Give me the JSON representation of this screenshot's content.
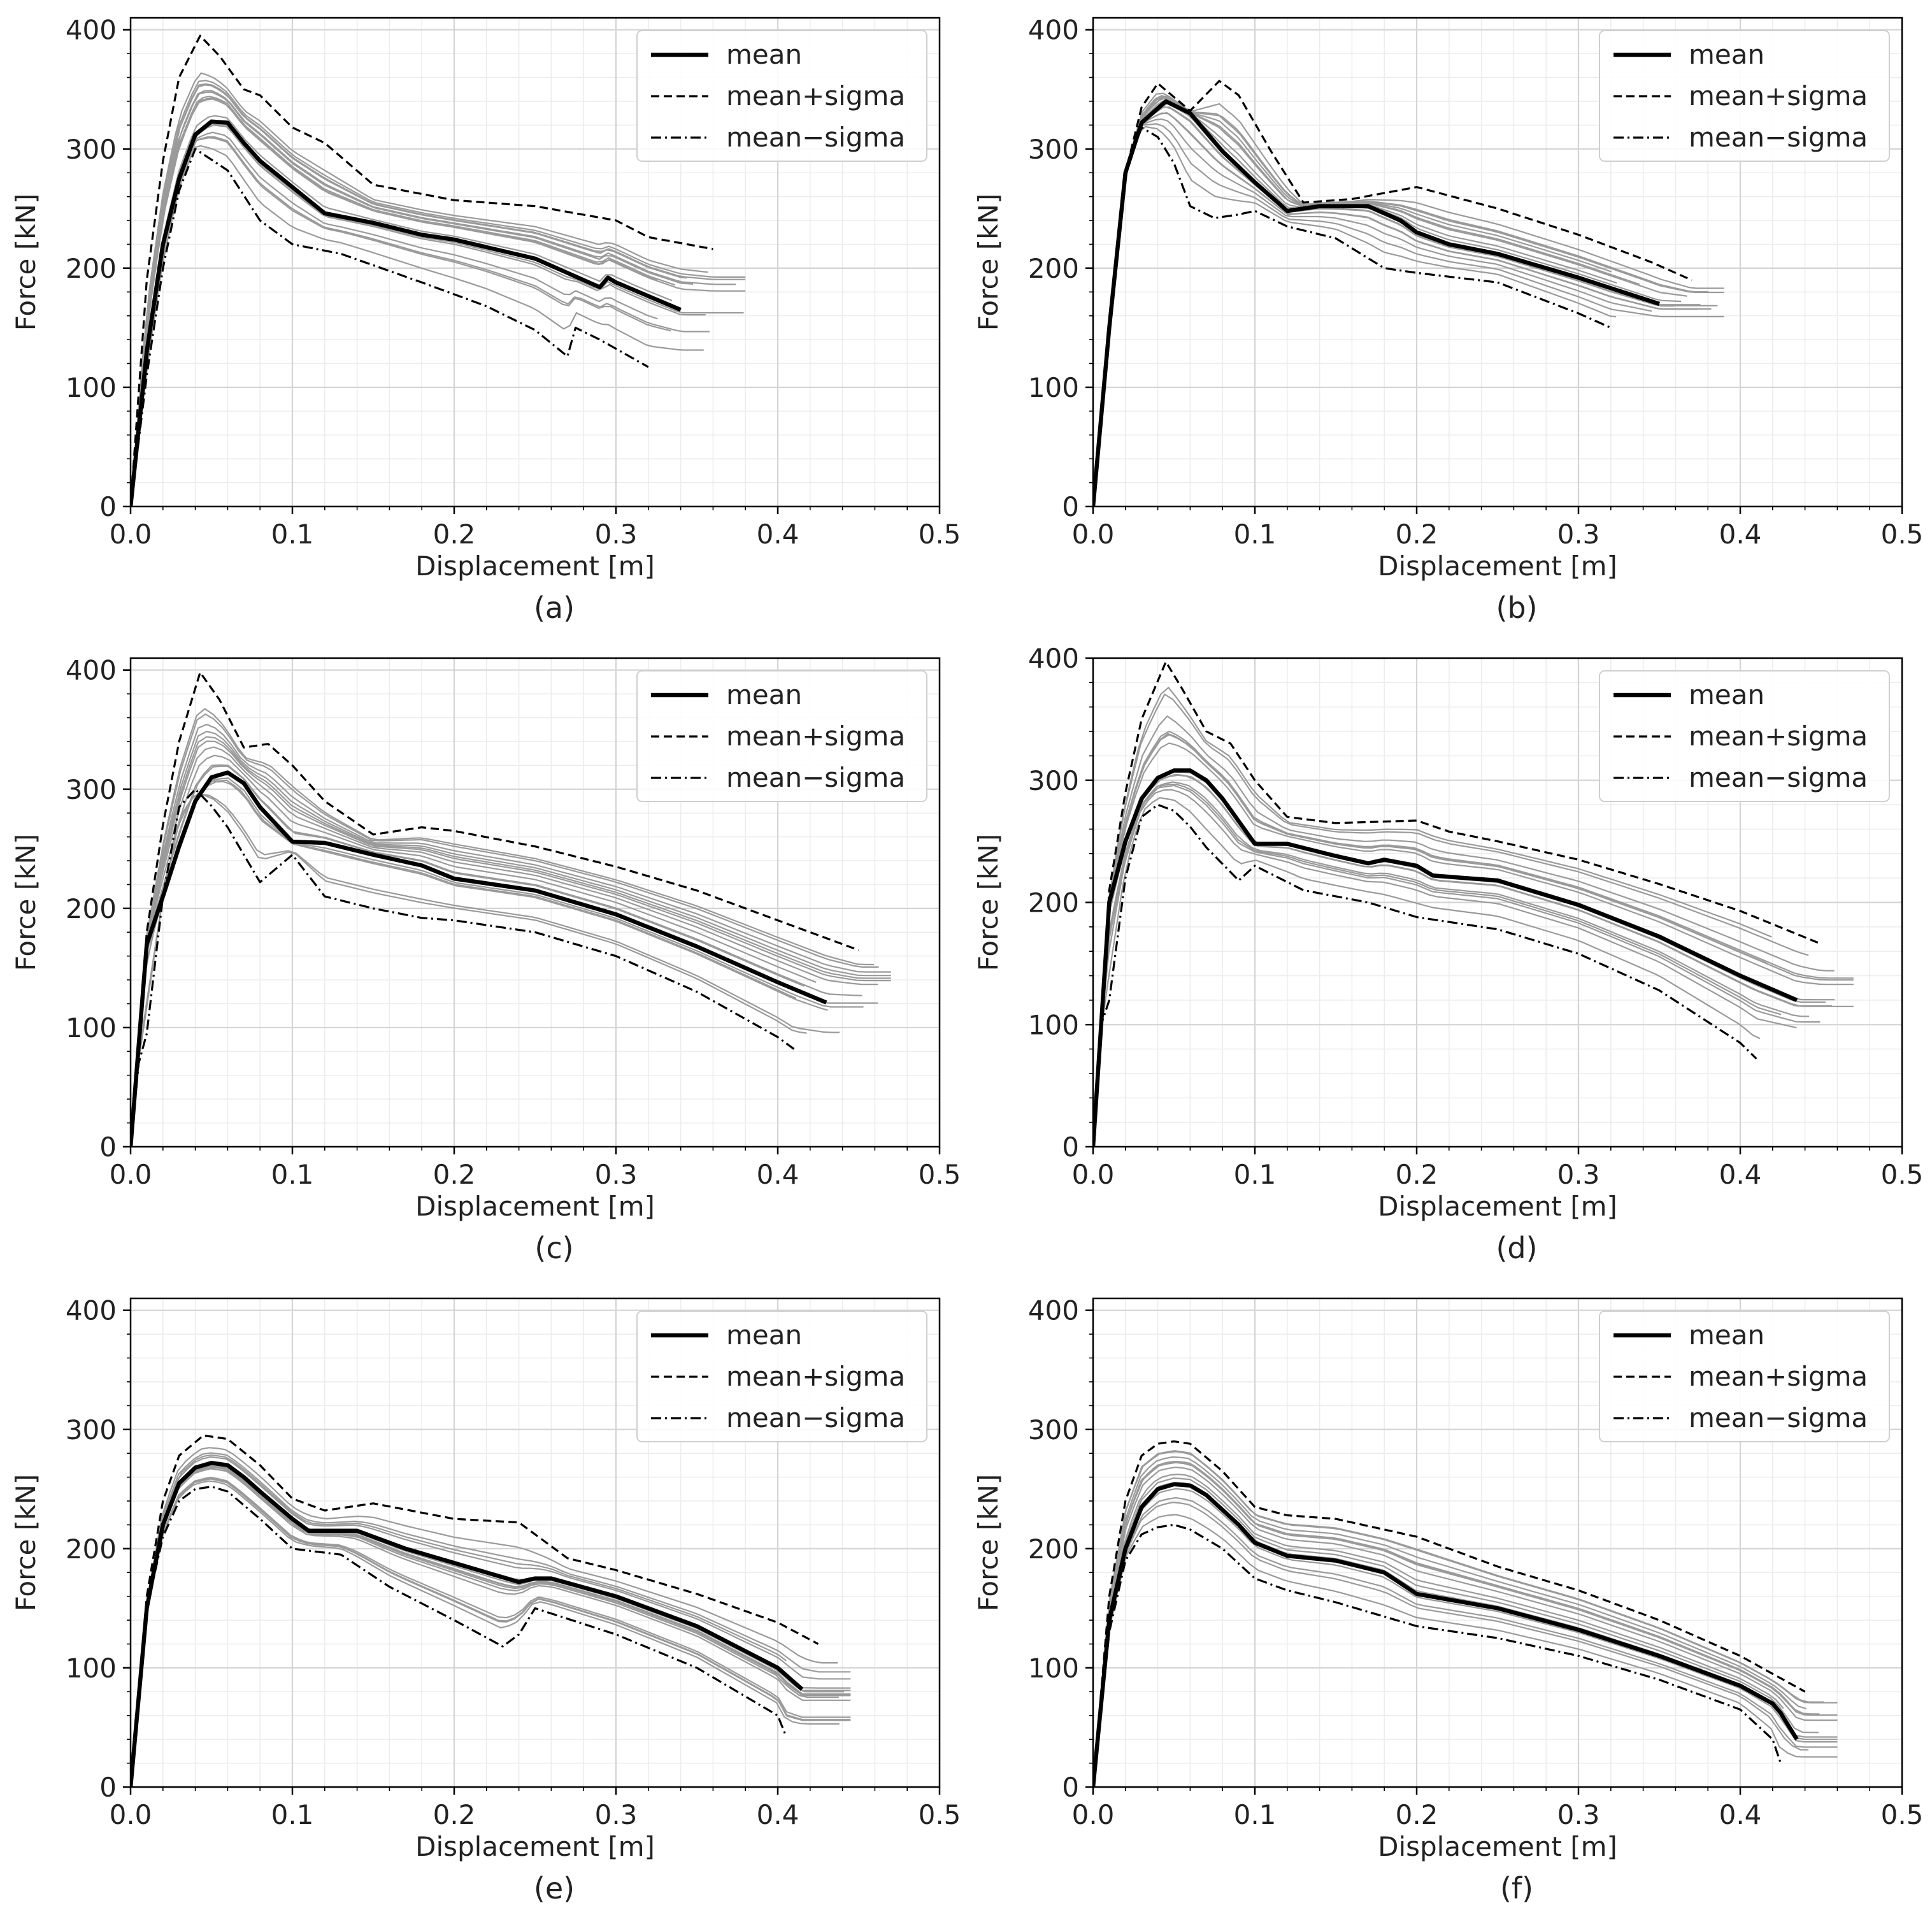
{
  "figure": {
    "chart_data": [
      {
        "type": "line",
        "panel_label": "(a)",
        "xlabel": "Displacement [m]",
        "ylabel": "Force [kN]",
        "xlim": [
          0,
          0.5
        ],
        "ylim": [
          0,
          410
        ],
        "xticks": [
          "0.0",
          "0.1",
          "0.2",
          "0.3",
          "0.4",
          "0.5"
        ],
        "yticks": [
          "0",
          "100",
          "200",
          "300",
          "400"
        ],
        "legend": {
          "position": "top-right",
          "entries": [
            "mean",
            "mean+sigma",
            "mean−sigma"
          ]
        },
        "series": [
          {
            "name": "mean",
            "style": "solid-thick",
            "x": [
              0,
              0.01,
              0.02,
              0.03,
              0.04,
              0.05,
              0.06,
              0.07,
              0.08,
              0.1,
              0.12,
              0.15,
              0.18,
              0.2,
              0.25,
              0.29,
              0.295,
              0.3,
              0.34
            ],
            "y": [
              0,
              130,
              220,
              275,
              312,
              323,
              322,
              305,
              290,
              268,
              246,
              238,
              228,
              224,
              208,
              184,
              192,
              188,
              165
            ]
          },
          {
            "name": "mean+sigma",
            "style": "dashed",
            "x": [
              0,
              0.01,
              0.02,
              0.03,
              0.043,
              0.055,
              0.07,
              0.08,
              0.1,
              0.12,
              0.15,
              0.2,
              0.25,
              0.3,
              0.32,
              0.36
            ],
            "y": [
              0,
              190,
              290,
              360,
              395,
              378,
              350,
              345,
              318,
              305,
              270,
              257,
              252,
              240,
              226,
              216
            ]
          },
          {
            "name": "mean−sigma",
            "style": "dashdot",
            "x": [
              0,
              0.01,
              0.02,
              0.03,
              0.04,
              0.06,
              0.08,
              0.1,
              0.13,
              0.18,
              0.22,
              0.25,
              0.27,
              0.275,
              0.29,
              0.32
            ],
            "y": [
              0,
              110,
              200,
              265,
              300,
              282,
              240,
              220,
              212,
              188,
              168,
              148,
              126,
              150,
              140,
              117
            ]
          }
        ]
      },
      {
        "type": "line",
        "panel_label": "(b)",
        "xlabel": "Displacement [m]",
        "ylabel": "Force [kN]",
        "xlim": [
          0,
          0.5
        ],
        "ylim": [
          0,
          410
        ],
        "xticks": [
          "0.0",
          "0.1",
          "0.2",
          "0.3",
          "0.4",
          "0.5"
        ],
        "yticks": [
          "0",
          "100",
          "200",
          "300",
          "400"
        ],
        "legend": {
          "position": "top-right",
          "entries": [
            "mean",
            "mean+sigma",
            "mean−sigma"
          ]
        },
        "series": [
          {
            "name": "mean",
            "style": "solid-thick",
            "x": [
              0,
              0.01,
              0.02,
              0.03,
              0.045,
              0.06,
              0.08,
              0.1,
              0.12,
              0.14,
              0.17,
              0.19,
              0.2,
              0.22,
              0.25,
              0.3,
              0.35
            ],
            "y": [
              0,
              150,
              280,
              322,
              340,
              330,
              298,
              272,
              248,
              252,
              252,
              240,
              230,
              220,
              212,
              192,
              170
            ]
          },
          {
            "name": "mean+sigma",
            "style": "dashed",
            "x": [
              0,
              0.01,
              0.02,
              0.03,
              0.04,
              0.06,
              0.078,
              0.09,
              0.11,
              0.13,
              0.16,
              0.2,
              0.25,
              0.3,
              0.345,
              0.37
            ],
            "y": [
              0,
              150,
              280,
              335,
              355,
              332,
              357,
              345,
              298,
              255,
              258,
              268,
              250,
              228,
              205,
              190
            ]
          },
          {
            "name": "mean−sigma",
            "style": "dashdot",
            "x": [
              0,
              0.01,
              0.02,
              0.03,
              0.04,
              0.05,
              0.06,
              0.075,
              0.09,
              0.1,
              0.12,
              0.15,
              0.18,
              0.2,
              0.25,
              0.3,
              0.32
            ],
            "y": [
              0,
              150,
              280,
              318,
              310,
              288,
              252,
              242,
              245,
              248,
              235,
              225,
              200,
              196,
              188,
              162,
              150
            ]
          }
        ]
      },
      {
        "type": "line",
        "panel_label": "(c)",
        "xlabel": "Displacement [m]",
        "ylabel": "Force [kN]",
        "xlim": [
          0,
          0.5
        ],
        "ylim": [
          0,
          410
        ],
        "xticks": [
          "0.0",
          "0.1",
          "0.2",
          "0.3",
          "0.4",
          "0.5"
        ],
        "yticks": [
          "0",
          "100",
          "200",
          "300",
          "400"
        ],
        "legend": {
          "position": "top-right",
          "entries": [
            "mean",
            "mean+sigma",
            "mean−sigma"
          ]
        },
        "series": [
          {
            "name": "mean",
            "style": "solid-thick",
            "x": [
              0,
              0.01,
              0.02,
              0.03,
              0.04,
              0.05,
              0.06,
              0.07,
              0.08,
              0.1,
              0.12,
              0.15,
              0.18,
              0.2,
              0.25,
              0.3,
              0.35,
              0.4,
              0.43
            ],
            "y": [
              0,
              170,
              210,
              252,
              290,
              310,
              314,
              305,
              285,
              256,
              255,
              245,
              236,
              225,
              215,
              195,
              168,
              138,
              121
            ]
          },
          {
            "name": "mean+sigma",
            "style": "dashed",
            "x": [
              0,
              0.01,
              0.02,
              0.03,
              0.043,
              0.055,
              0.07,
              0.085,
              0.1,
              0.12,
              0.15,
              0.18,
              0.2,
              0.25,
              0.3,
              0.35,
              0.4,
              0.45
            ],
            "y": [
              0,
              180,
              270,
              340,
              398,
              375,
              335,
              338,
              320,
              290,
              262,
              268,
              265,
              252,
              235,
              215,
              190,
              165
            ]
          },
          {
            "name": "mean−sigma",
            "style": "dashdot",
            "x": [
              0,
              0.005,
              0.01,
              0.02,
              0.03,
              0.04,
              0.05,
              0.06,
              0.08,
              0.1,
              0.12,
              0.15,
              0.18,
              0.2,
              0.25,
              0.3,
              0.35,
              0.4,
              0.41
            ],
            "y": [
              0,
              70,
              95,
              210,
              285,
              300,
              286,
              268,
              222,
              245,
              210,
              200,
              192,
              190,
              180,
              160,
              130,
              92,
              82
            ]
          }
        ]
      },
      {
        "type": "line",
        "panel_label": "(d)",
        "xlabel": "Displacement [m]",
        "ylabel": "Force [kN]",
        "xlim": [
          0,
          0.5
        ],
        "ylim": [
          0,
          400
        ],
        "xticks": [
          "0.0",
          "0.1",
          "0.2",
          "0.3",
          "0.4",
          "0.5"
        ],
        "yticks": [
          "0",
          "100",
          "200",
          "300",
          "400"
        ],
        "legend": {
          "position": "top-right",
          "entries": [
            "mean",
            "mean+sigma",
            "mean−sigma"
          ]
        },
        "series": [
          {
            "name": "mean",
            "style": "solid-thick",
            "x": [
              0,
              0.01,
              0.02,
              0.03,
              0.04,
              0.05,
              0.06,
              0.07,
              0.08,
              0.1,
              0.12,
              0.15,
              0.17,
              0.18,
              0.2,
              0.21,
              0.25,
              0.3,
              0.35,
              0.4,
              0.435
            ],
            "y": [
              0,
              200,
              250,
              285,
              302,
              308,
              308,
              300,
              285,
              248,
              248,
              238,
              232,
              235,
              230,
              222,
              218,
              198,
              172,
              140,
              120
            ]
          },
          {
            "name": "mean+sigma",
            "style": "dashed",
            "x": [
              0,
              0.01,
              0.02,
              0.03,
              0.045,
              0.055,
              0.07,
              0.085,
              0.1,
              0.12,
              0.15,
              0.2,
              0.22,
              0.25,
              0.3,
              0.35,
              0.4,
              0.45
            ],
            "y": [
              0,
              210,
              290,
              350,
              397,
              375,
              340,
              330,
              300,
              270,
              265,
              267,
              258,
              250,
              235,
              215,
              193,
              166
            ]
          },
          {
            "name": "mean−sigma",
            "style": "dashdot",
            "x": [
              0,
              0.005,
              0.01,
              0.02,
              0.03,
              0.04,
              0.05,
              0.06,
              0.07,
              0.09,
              0.1,
              0.13,
              0.17,
              0.2,
              0.25,
              0.3,
              0.35,
              0.4,
              0.41
            ],
            "y": [
              0,
              100,
              120,
              220,
              270,
              280,
              275,
              262,
              245,
              218,
              230,
              210,
              200,
              188,
              178,
              158,
              128,
              85,
              72
            ]
          }
        ]
      },
      {
        "type": "line",
        "panel_label": "(e)",
        "xlabel": "Displacement [m]",
        "ylabel": "Force [kN]",
        "xlim": [
          0,
          0.5
        ],
        "ylim": [
          0,
          410
        ],
        "xticks": [
          "0.0",
          "0.1",
          "0.2",
          "0.3",
          "0.4",
          "0.5"
        ],
        "yticks": [
          "0",
          "100",
          "200",
          "300",
          "400"
        ],
        "legend": {
          "position": "top-right",
          "entries": [
            "mean",
            "mean+sigma",
            "mean−sigma"
          ]
        },
        "series": [
          {
            "name": "mean",
            "style": "solid-thick",
            "x": [
              0,
              0.01,
              0.02,
              0.03,
              0.04,
              0.05,
              0.06,
              0.07,
              0.08,
              0.1,
              0.11,
              0.14,
              0.17,
              0.2,
              0.24,
              0.25,
              0.26,
              0.3,
              0.35,
              0.4,
              0.415
            ],
            "y": [
              0,
              150,
              220,
              255,
              268,
              272,
              270,
              260,
              248,
              225,
              215,
              215,
              200,
              188,
              172,
              175,
              175,
              160,
              135,
              100,
              82
            ]
          },
          {
            "name": "mean+sigma",
            "style": "dashed",
            "x": [
              0,
              0.01,
              0.02,
              0.03,
              0.045,
              0.06,
              0.08,
              0.1,
              0.12,
              0.15,
              0.2,
              0.24,
              0.27,
              0.3,
              0.35,
              0.4,
              0.425
            ],
            "y": [
              0,
              160,
              240,
              278,
              295,
              292,
              270,
              242,
              232,
              238,
              225,
              222,
              192,
              182,
              162,
              138,
              120
            ]
          },
          {
            "name": "mean−sigma",
            "style": "dashdot",
            "x": [
              0,
              0.01,
              0.02,
              0.03,
              0.04,
              0.05,
              0.06,
              0.08,
              0.1,
              0.13,
              0.16,
              0.2,
              0.23,
              0.24,
              0.25,
              0.3,
              0.35,
              0.4,
              0.405
            ],
            "y": [
              0,
              150,
              210,
              240,
              250,
              252,
              248,
              225,
              200,
              195,
              168,
              140,
              118,
              128,
              150,
              128,
              100,
              60,
              43
            ]
          }
        ]
      },
      {
        "type": "line",
        "panel_label": "(f)",
        "xlabel": "Displacement [m]",
        "ylabel": "Force [kN]",
        "xlim": [
          0,
          0.5
        ],
        "ylim": [
          0,
          410
        ],
        "xticks": [
          "0.0",
          "0.1",
          "0.2",
          "0.3",
          "0.4",
          "0.5"
        ],
        "yticks": [
          "0",
          "100",
          "200",
          "300",
          "400"
        ],
        "legend": {
          "position": "top-right",
          "entries": [
            "mean",
            "mean+sigma",
            "mean−sigma"
          ]
        },
        "series": [
          {
            "name": "mean",
            "style": "solid-thick",
            "x": [
              0,
              0.01,
              0.02,
              0.03,
              0.04,
              0.05,
              0.06,
              0.07,
              0.09,
              0.1,
              0.12,
              0.15,
              0.18,
              0.2,
              0.25,
              0.3,
              0.35,
              0.38,
              0.4,
              0.42,
              0.425,
              0.435
            ],
            "y": [
              0,
              140,
              200,
              235,
              250,
              254,
              253,
              245,
              220,
              205,
              194,
              190,
              180,
              162,
              150,
              132,
              110,
              95,
              85,
              70,
              62,
              40
            ]
          },
          {
            "name": "mean+sigma",
            "style": "dashed",
            "x": [
              0,
              0.01,
              0.02,
              0.03,
              0.04,
              0.05,
              0.06,
              0.08,
              0.1,
              0.12,
              0.15,
              0.2,
              0.25,
              0.3,
              0.35,
              0.4,
              0.42,
              0.44
            ],
            "y": [
              0,
              160,
              240,
              278,
              288,
              290,
              288,
              265,
              235,
              228,
              225,
              210,
              185,
              165,
              140,
              110,
              95,
              80
            ]
          },
          {
            "name": "mean−sigma",
            "style": "dashdot",
            "x": [
              0,
              0.01,
              0.02,
              0.03,
              0.04,
              0.05,
              0.06,
              0.08,
              0.1,
              0.12,
              0.15,
              0.2,
              0.25,
              0.3,
              0.35,
              0.4,
              0.42,
              0.425
            ],
            "y": [
              0,
              130,
              190,
              212,
              218,
              220,
              216,
              200,
              175,
              165,
              155,
              135,
              125,
              110,
              90,
              65,
              40,
              20
            ]
          }
        ]
      }
    ]
  }
}
